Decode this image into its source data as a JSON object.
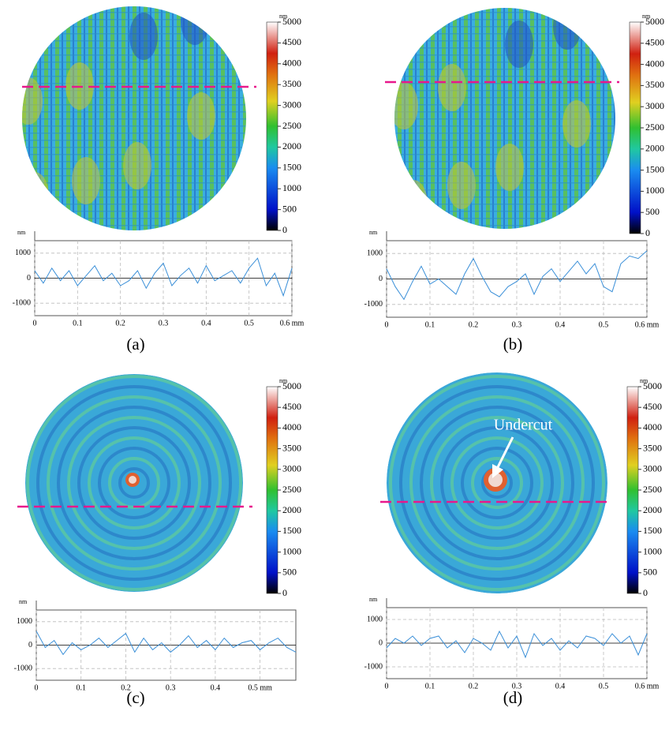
{
  "chart_data": [
    {
      "type": "line",
      "title": "(a)",
      "ylabel": "nm",
      "grid": true,
      "xlim": [
        0,
        0.6
      ],
      "xticks": [
        0,
        0.1,
        0.2,
        0.3,
        0.4,
        0.5,
        {
          "value": 0.6,
          "label": "0.6 mm"
        }
      ],
      "ylim": [
        -1500,
        1500
      ],
      "yticks": [
        -1000,
        0,
        1000
      ],
      "colorbar": {
        "label": "nm",
        "lim": [
          0,
          5000
        ],
        "ticks": [
          0,
          500,
          1000,
          1500,
          2000,
          2500,
          3000,
          3500,
          4000,
          4500,
          5000
        ]
      },
      "x": [
        0,
        0.02,
        0.04,
        0.06,
        0.08,
        0.1,
        0.12,
        0.14,
        0.16,
        0.18,
        0.2,
        0.22,
        0.24,
        0.26,
        0.28,
        0.3,
        0.32,
        0.34,
        0.36,
        0.38,
        0.4,
        0.42,
        0.44,
        0.46,
        0.48,
        0.5,
        0.52,
        0.54,
        0.56,
        0.58,
        0.6
      ],
      "series": [
        {
          "color": "#3a8fd8",
          "values": [
            300,
            -200,
            400,
            -100,
            300,
            -300,
            100,
            500,
            -100,
            200,
            -300,
            -100,
            300,
            -400,
            200,
            600,
            -300,
            100,
            400,
            -200,
            500,
            -100,
            100,
            300,
            -200,
            400,
            800,
            -300,
            200,
            -700,
            400
          ]
        }
      ]
    },
    {
      "type": "line",
      "title": "(b)",
      "ylabel": "nm",
      "grid": true,
      "xlim": [
        0,
        0.6
      ],
      "xticks": [
        0,
        0.1,
        0.2,
        0.3,
        0.4,
        0.5,
        {
          "value": 0.6,
          "label": "0.6 mm"
        }
      ],
      "ylim": [
        -1500,
        1500
      ],
      "yticks": [
        -1000,
        0,
        1000
      ],
      "colorbar": {
        "label": "nm",
        "lim": [
          0,
          5000
        ],
        "ticks": [
          0,
          500,
          1000,
          1500,
          2000,
          2500,
          3000,
          3500,
          4000,
          4500,
          5000
        ]
      },
      "x": [
        0,
        0.02,
        0.04,
        0.06,
        0.08,
        0.1,
        0.12,
        0.14,
        0.16,
        0.18,
        0.2,
        0.22,
        0.24,
        0.26,
        0.28,
        0.3,
        0.32,
        0.34,
        0.36,
        0.38,
        0.4,
        0.42,
        0.44,
        0.46,
        0.48,
        0.5,
        0.52,
        0.54,
        0.56,
        0.58,
        0.6
      ],
      "series": [
        {
          "color": "#3a8fd8",
          "values": [
            400,
            -300,
            -800,
            -100,
            500,
            -200,
            0,
            -300,
            -600,
            200,
            800,
            100,
            -500,
            -700,
            -300,
            -100,
            200,
            -600,
            100,
            400,
            -100,
            300,
            700,
            200,
            600,
            -300,
            -500,
            600,
            900,
            800,
            1100
          ]
        }
      ]
    },
    {
      "type": "line",
      "title": "(c)",
      "ylabel": "nm",
      "grid": true,
      "xlim": [
        0,
        0.58
      ],
      "xticks": [
        0,
        0.1,
        0.2,
        0.3,
        0.4,
        {
          "value": 0.5,
          "label": "0.5 mm"
        }
      ],
      "ylim": [
        -1500,
        1500
      ],
      "yticks": [
        -1000,
        0,
        1000
      ],
      "colorbar": {
        "label": "nm",
        "lim": [
          0,
          5000
        ],
        "ticks": [
          0,
          500,
          1000,
          1500,
          2000,
          2500,
          3000,
          3500,
          4000,
          4500,
          5000
        ]
      },
      "x": [
        0,
        0.02,
        0.04,
        0.06,
        0.08,
        0.1,
        0.12,
        0.14,
        0.16,
        0.18,
        0.2,
        0.22,
        0.24,
        0.26,
        0.28,
        0.3,
        0.32,
        0.34,
        0.36,
        0.38,
        0.4,
        0.42,
        0.44,
        0.46,
        0.48,
        0.5,
        0.52,
        0.54,
        0.56,
        0.58
      ],
      "series": [
        {
          "color": "#3a8fd8",
          "values": [
            600,
            -100,
            200,
            -400,
            100,
            -200,
            0,
            300,
            -100,
            200,
            500,
            -300,
            300,
            -200,
            100,
            -300,
            0,
            400,
            -100,
            200,
            -200,
            300,
            -100,
            100,
            200,
            -200,
            100,
            300,
            -100,
            -300
          ]
        }
      ]
    },
    {
      "type": "line",
      "title": "(d)",
      "ylabel": "nm",
      "grid": true,
      "xlim": [
        0,
        0.6
      ],
      "xticks": [
        0,
        0.1,
        0.2,
        0.3,
        0.4,
        0.5,
        {
          "value": 0.6,
          "label": "0.6 mm"
        }
      ],
      "ylim": [
        -1500,
        1500
      ],
      "yticks": [
        -1000,
        0,
        1000
      ],
      "colorbar": {
        "label": "nm",
        "lim": [
          0,
          5000
        ],
        "ticks": [
          0,
          500,
          1000,
          1500,
          2000,
          2500,
          3000,
          3500,
          4000,
          4500,
          5000
        ]
      },
      "annotations": [
        {
          "text": "Undercut"
        }
      ],
      "x": [
        0,
        0.02,
        0.04,
        0.06,
        0.08,
        0.1,
        0.12,
        0.14,
        0.16,
        0.18,
        0.2,
        0.22,
        0.24,
        0.26,
        0.28,
        0.3,
        0.32,
        0.34,
        0.36,
        0.38,
        0.4,
        0.42,
        0.44,
        0.46,
        0.48,
        0.5,
        0.52,
        0.54,
        0.56,
        0.58,
        0.6
      ],
      "series": [
        {
          "color": "#3a8fd8",
          "values": [
            -200,
            200,
            0,
            300,
            -100,
            200,
            300,
            -200,
            100,
            -400,
            200,
            0,
            -300,
            500,
            -200,
            300,
            -600,
            400,
            -100,
            200,
            -300,
            100,
            -200,
            300,
            200,
            -100,
            400,
            0,
            300,
            -500,
            400
          ]
        }
      ]
    }
  ]
}
